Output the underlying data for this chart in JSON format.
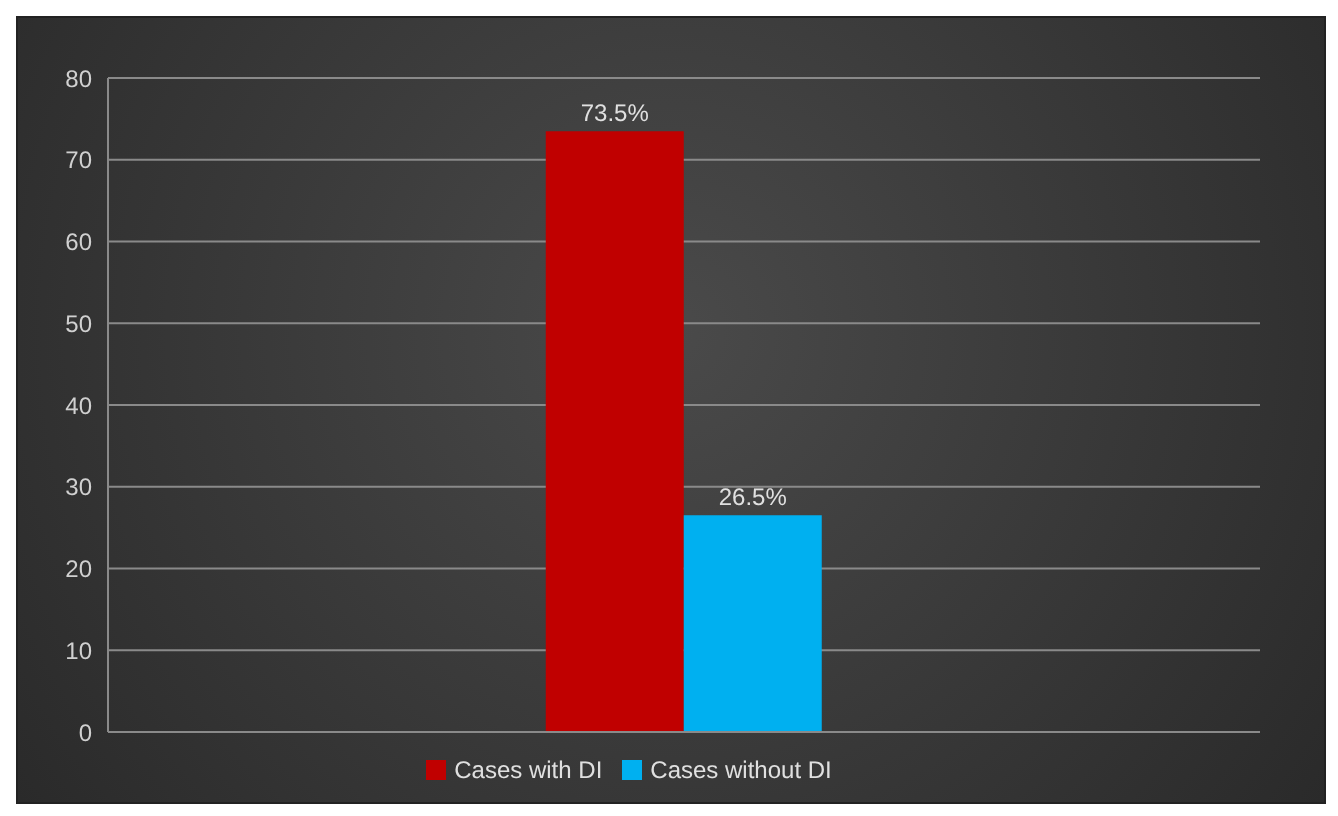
{
  "chart_data": {
    "type": "bar",
    "categories": [
      null
    ],
    "series": [
      {
        "name": "Cases with DI",
        "color": "#c00000",
        "values": [
          73.5
        ],
        "value_labels": [
          "73.5%"
        ]
      },
      {
        "name": "Cases without DI",
        "color": "#00b0f0",
        "values": [
          26.5
        ],
        "value_labels": [
          "26.5%"
        ]
      }
    ],
    "ylim": [
      0,
      80
    ],
    "yticks": [
      0,
      10,
      20,
      30,
      40,
      50,
      60,
      70,
      80
    ],
    "grid": "y",
    "legend": "bottom"
  }
}
